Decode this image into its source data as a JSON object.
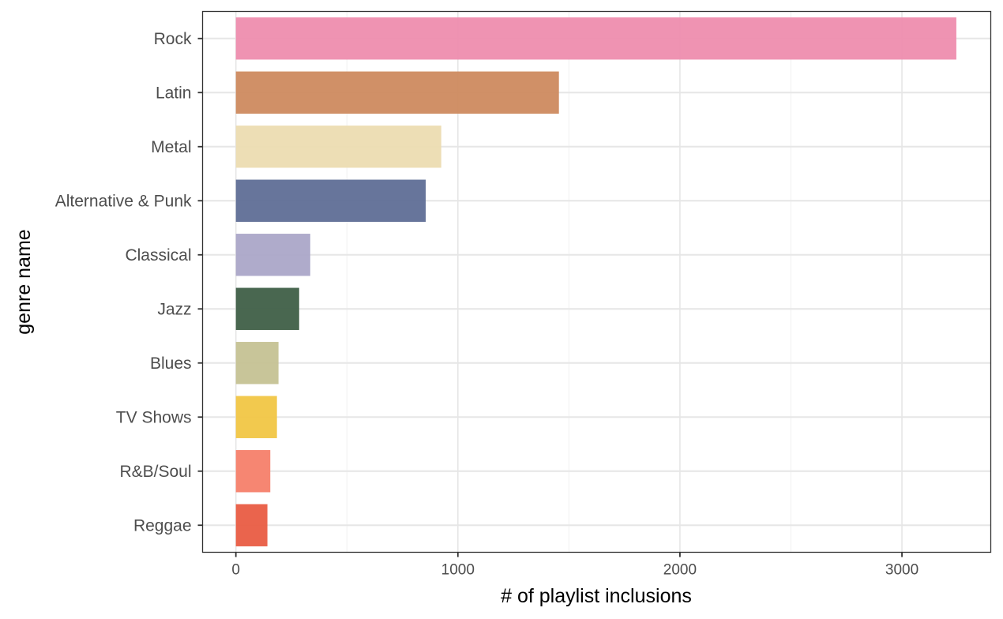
{
  "chart_data": {
    "type": "bar",
    "orientation": "horizontal",
    "categories": [
      "Rock",
      "Latin",
      "Metal",
      "Alternative & Punk",
      "Classical",
      "Jazz",
      "Blues",
      "TV Shows",
      "R&B/Soul",
      "Reggae"
    ],
    "values": [
      3245,
      1455,
      925,
      855,
      335,
      285,
      192,
      185,
      155,
      142
    ],
    "colors": [
      "#ee8dae",
      "#cd8a5f",
      "#ecdcb1",
      "#5f6e96",
      "#aba6c8",
      "#3f5f47",
      "#c5c293",
      "#f1c644",
      "#f5806a",
      "#e95c43"
    ],
    "xlabel": "# of playlist inclusions",
    "ylabel": "genre name",
    "xlim": [
      -150,
      3400
    ],
    "xticks": [
      0,
      1000,
      2000,
      3000
    ],
    "grid": true,
    "legend": "none"
  }
}
